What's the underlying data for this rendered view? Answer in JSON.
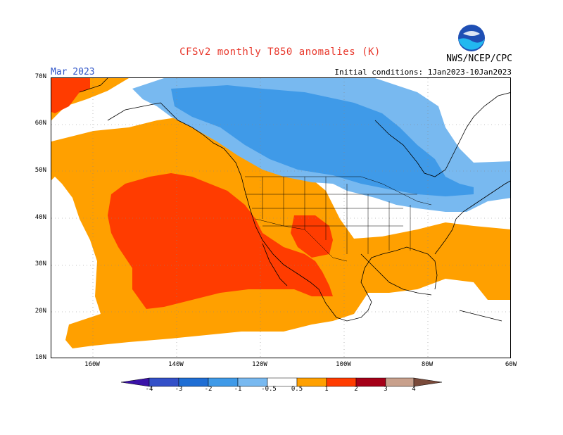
{
  "title": "CFSv2 monthly T850 anomalies (K)",
  "agency": "NWS/NCEP/CPC",
  "valid_month": "Mar 2023",
  "initial_conditions": "Initial conditions: 1Jan2023-10Jan2023",
  "logo_icon": "noaa-logo-icon",
  "lat_labels": [
    "70N",
    "60N",
    "50N",
    "40N",
    "30N",
    "20N",
    "10N"
  ],
  "lon_labels": [
    "160W",
    "140W",
    "120W",
    "100W",
    "80W",
    "60W"
  ],
  "colorbar": {
    "tick_labels": [
      "-4",
      "-3",
      "-2",
      "-1",
      "-0.5",
      "0.5",
      "1",
      "2",
      "3",
      "4"
    ],
    "colors": [
      "#3a12a8",
      "#3350c8",
      "#1f6ed4",
      "#3f9ae8",
      "#78b9f0",
      "#ffffff",
      "#ffa000",
      "#ff3c00",
      "#a50018",
      "#c8a08c",
      "#7a4a3a"
    ]
  },
  "map_extent": {
    "lon_min": -170,
    "lon_max": -60,
    "lat_min": 10,
    "lat_max": 70
  },
  "anomaly_colors": {
    "cold_light": "#78b9f0",
    "cold_mid": "#3f9ae8",
    "warm_light": "#ffa000",
    "warm_mid": "#ff3c00"
  }
}
